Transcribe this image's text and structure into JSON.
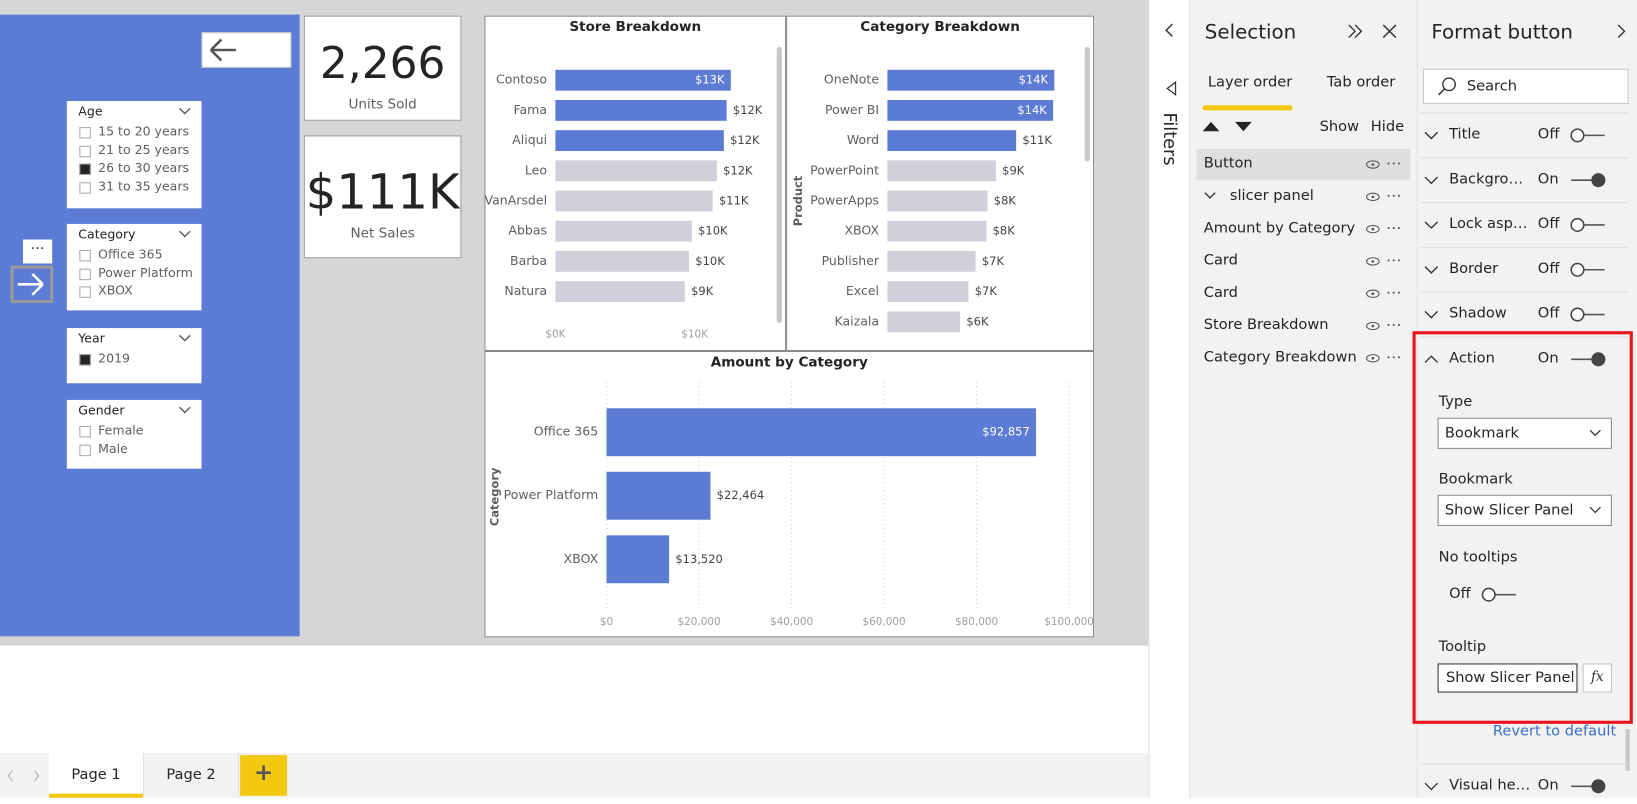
{
  "report_nav": {
    "filters": "Filters"
  },
  "slicers": [
    {
      "title": "Age",
      "items": [
        "15 to 20 years",
        "21 to 25 years",
        "26 to 30 years",
        "31 to 35 years"
      ],
      "checked": [
        false,
        false,
        true,
        false
      ]
    },
    {
      "title": "Category",
      "items": [
        "Office 365",
        "Power Platform",
        "XBOX"
      ],
      "checked": [
        false,
        false,
        false
      ]
    },
    {
      "title": "Year",
      "items": [
        "2019"
      ],
      "checked": [
        true
      ]
    },
    {
      "title": "Gender",
      "items": [
        "Female",
        "Male"
      ],
      "checked": [
        false,
        false
      ]
    }
  ],
  "cards": [
    {
      "value": "2,266",
      "label": "Units Sold"
    },
    {
      "value": "$111K",
      "label": "Net Sales"
    }
  ],
  "chart_data": [
    {
      "type": "hbar",
      "title": "Store Breakdown",
      "categories": [
        "Contoso",
        "Fama",
        "Aliqui",
        "Leo",
        "VanArsdel",
        "Abbas",
        "Barba",
        "Natura"
      ],
      "values": [
        12.6,
        12.3,
        12.1,
        11.6,
        11.3,
        9.8,
        9.6,
        9.3
      ],
      "value_labels": [
        "$13K",
        "$12K",
        "$12K",
        "$12K",
        "$11K",
        "$10K",
        "$10K",
        "$9K"
      ],
      "colors": [
        "#5b7bd5",
        "#5b7bd5",
        "#5b7bd5",
        "#d0d0dc",
        "#d0d0dc",
        "#d0d0dc",
        "#d0d0dc",
        "#d0d0dc"
      ],
      "xlim": [
        0,
        15
      ],
      "xticks": [
        {
          "value": 0,
          "label": "$0K"
        },
        {
          "value": 10,
          "label": "$10K"
        }
      ],
      "grid": false
    },
    {
      "type": "hbar",
      "title": "Category Breakdown",
      "y_axis_title": "Product",
      "categories": [
        "OneNote",
        "Power BI",
        "Word",
        "PowerPoint",
        "PowerApps",
        "XBOX",
        "Publisher",
        "Excel",
        "Kaizala"
      ],
      "values": [
        14.0,
        13.9,
        10.8,
        9.1,
        8.4,
        8.3,
        7.4,
        6.8,
        6.1
      ],
      "value_labels": [
        "$14K",
        "$14K",
        "$11K",
        "$9K",
        "$8K",
        "$8K",
        "$7K",
        "$7K",
        "$6K"
      ],
      "colors": [
        "#5b7bd5",
        "#5b7bd5",
        "#5b7bd5",
        "#d0d0dc",
        "#d0d0dc",
        "#d0d0dc",
        "#d0d0dc",
        "#d0d0dc",
        "#d0d0dc"
      ],
      "xlim": [
        0,
        15.5
      ],
      "grid": false
    },
    {
      "type": "hbar",
      "title": "Amount by Category",
      "y_axis_title": "Category",
      "categories": [
        "Office 365",
        "Power Platform",
        "XBOX"
      ],
      "values": [
        92857,
        22464,
        13520
      ],
      "value_labels": [
        "$92,857",
        "$22,464",
        "$13,520"
      ],
      "colors": [
        "#5b7bd5",
        "#5b7bd5",
        "#5b7bd5"
      ],
      "xlim": [
        0,
        100000
      ],
      "xticks": [
        {
          "value": 0,
          "label": "$0"
        },
        {
          "value": 20000,
          "label": "$20,000"
        },
        {
          "value": 40000,
          "label": "$40,000"
        },
        {
          "value": 60000,
          "label": "$60,000"
        },
        {
          "value": 80000,
          "label": "$80,000"
        },
        {
          "value": 100000,
          "label": "$100,000"
        }
      ],
      "grid": true
    }
  ],
  "selection_pane": {
    "title": "Selection",
    "tabs": [
      "Layer order",
      "Tab order"
    ],
    "show": "Show",
    "hide": "Hide",
    "layers": [
      "Button",
      "slicer panel",
      "Amount by Category",
      "Card",
      "Card",
      "Store Breakdown",
      "Category Breakdown"
    ]
  },
  "format_pane": {
    "title": "Format button",
    "search": "Search",
    "sections": [
      {
        "name": "Title",
        "state": "Off"
      },
      {
        "name": "Backgro…",
        "state": "On"
      },
      {
        "name": "Lock asp…",
        "state": "Off"
      },
      {
        "name": "Border",
        "state": "Off"
      },
      {
        "name": "Shadow",
        "state": "Off"
      },
      {
        "name": "Action",
        "state": "On"
      }
    ],
    "action": {
      "type_label": "Type",
      "type": "Bookmark",
      "bookmark_label": "Bookmark",
      "bookmark": "Show Slicer Panel",
      "no_tooltips_label": "No tooltips",
      "no_tooltips_state": "Off",
      "tooltip_label": "Tooltip",
      "tooltip": "Show Slicer Panel",
      "fx": "fx",
      "revert": "Revert to default"
    },
    "visual_header": {
      "name": "Visual he…",
      "state": "On"
    }
  },
  "page_tabs": [
    "Page 1",
    "Page 2"
  ],
  "add_page": "+"
}
